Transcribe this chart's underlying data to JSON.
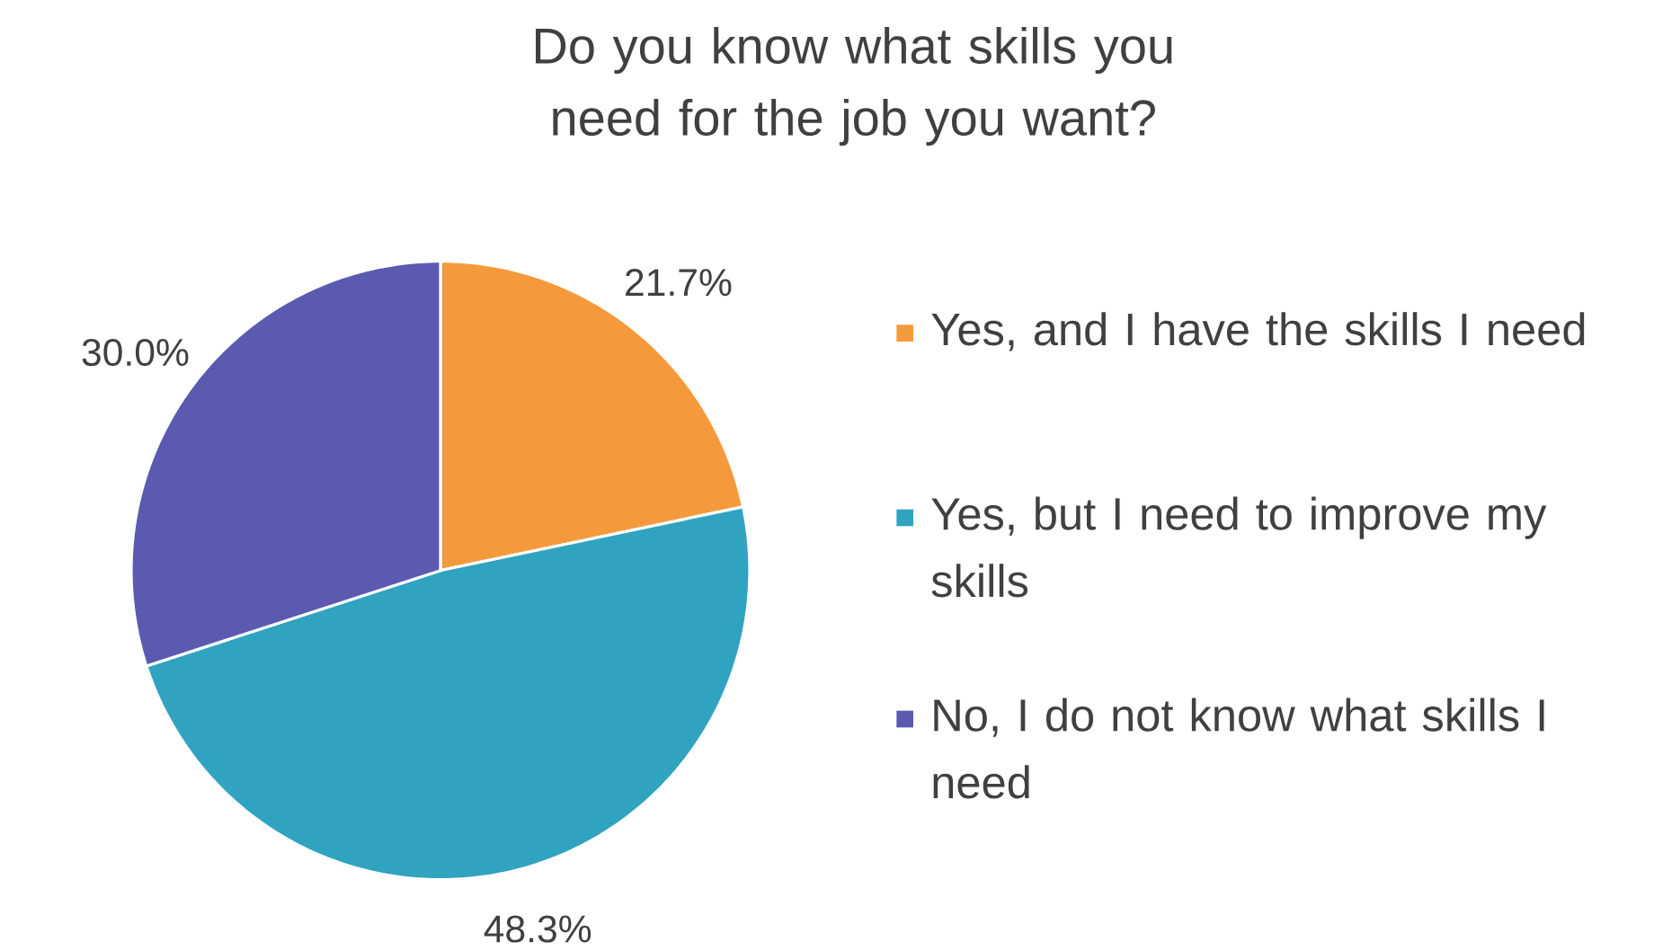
{
  "chart_data": {
    "type": "pie",
    "title": "Do you know what skills you need for the job you want?",
    "categories": [
      "Yes, and I have the skills I need",
      "Yes, but I need to improve my skills",
      "No, I do not know what skills I need"
    ],
    "values": [
      21.7,
      48.3,
      30.0
    ],
    "value_labels": [
      "21.7%",
      "48.3%",
      "30.0%"
    ],
    "colors": [
      "#f59a3c",
      "#30a3c1",
      "#5a5ab0"
    ],
    "legend": "right"
  }
}
